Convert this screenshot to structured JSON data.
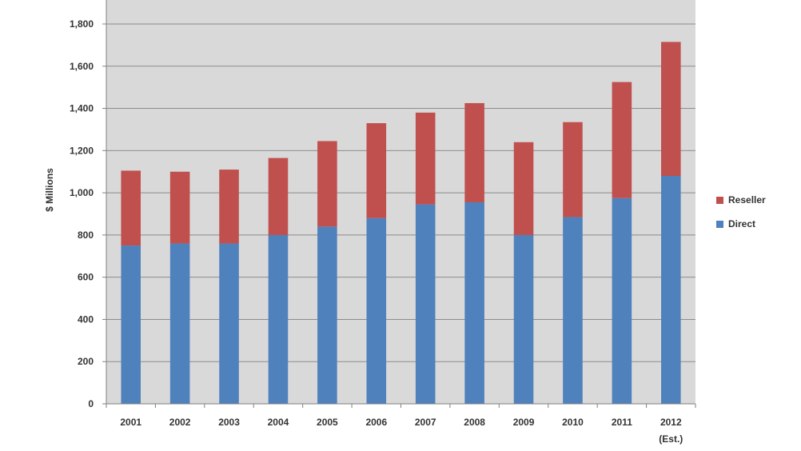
{
  "chart_data": {
    "type": "bar",
    "stacked": true,
    "ylabel": "$ Millions",
    "ylim": [
      0,
      1800
    ],
    "yticks": [
      "0",
      "200",
      "400",
      "600",
      "800",
      "1,000",
      "1,200",
      "1,400",
      "1,600",
      "1,800"
    ],
    "ytick_values": [
      0,
      200,
      400,
      600,
      800,
      1000,
      1200,
      1400,
      1600,
      1800
    ],
    "categories": [
      "2001",
      "2002",
      "2003",
      "2004",
      "2005",
      "2006",
      "2007",
      "2008",
      "2009",
      "2010",
      "2011",
      "2012"
    ],
    "category_sublabels": [
      "",
      "",
      "",
      "",
      "",
      "",
      "",
      "",
      "",
      "",
      "",
      "(Est.)"
    ],
    "grid": true,
    "legend_position": "right",
    "series": [
      {
        "name": "Direct",
        "color": "#4f81bd",
        "values": [
          750,
          760,
          760,
          800,
          840,
          880,
          945,
          955,
          800,
          885,
          975,
          1080
        ]
      },
      {
        "name": "Reseller",
        "color": "#c0504d",
        "values": [
          355,
          340,
          350,
          365,
          405,
          450,
          435,
          470,
          440,
          450,
          550,
          635
        ]
      }
    ],
    "legend": [
      {
        "name": "Reseller",
        "color": "#c0504d"
      },
      {
        "name": "Direct",
        "color": "#4f81bd"
      }
    ]
  }
}
